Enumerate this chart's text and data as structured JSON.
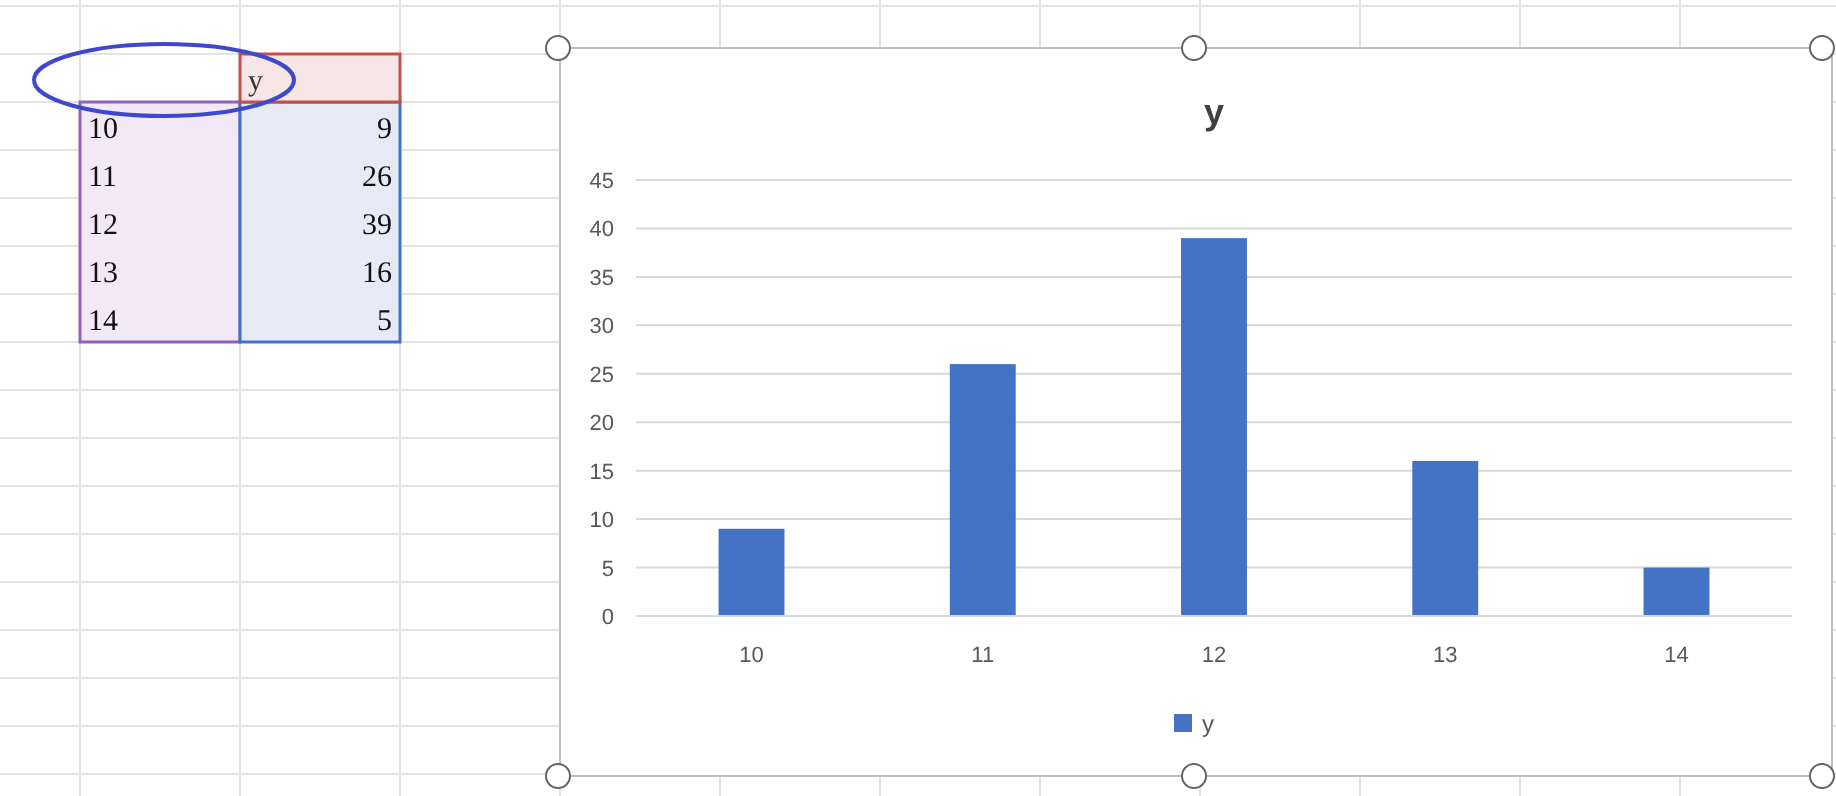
{
  "chart_data": {
    "type": "bar",
    "title": "y",
    "categories": [
      "10",
      "11",
      "12",
      "13",
      "14"
    ],
    "series": [
      {
        "name": "y",
        "color": "#4472c4",
        "values": [
          9,
          26,
          39,
          16,
          5
        ]
      }
    ],
    "ylim": [
      0,
      45
    ],
    "yticks": [
      0,
      5,
      10,
      15,
      20,
      25,
      30,
      35,
      40,
      45
    ],
    "grid": "y",
    "legend": "bottom",
    "annotations": [
      "9",
      "26",
      "39",
      "16",
      "5"
    ]
  }
}
